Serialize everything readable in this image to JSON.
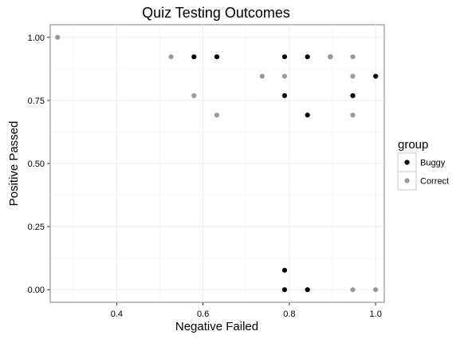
{
  "chart_data": {
    "type": "scatter",
    "title": "Quiz Testing Outcomes",
    "xlabel": "Negative Failed",
    "ylabel": "Positive Passed",
    "xlim": [
      0.246,
      1.02
    ],
    "ylim": [
      -0.05,
      1.05
    ],
    "x_ticks": [
      0.4,
      0.6,
      0.8,
      1.0
    ],
    "x_tick_labels": [
      "0.4",
      "0.6",
      "0.8",
      "1.0"
    ],
    "y_ticks": [
      0.0,
      0.25,
      0.5,
      0.75,
      1.0
    ],
    "y_tick_labels": [
      "0.00",
      "0.25",
      "0.50",
      "0.75",
      "1.00"
    ],
    "grid": true,
    "legend": {
      "title": "group",
      "placement": "right"
    },
    "series": [
      {
        "name": "Buggy",
        "color": "#000000",
        "points": [
          [
            0.579,
            0.923
          ],
          [
            0.632,
            0.923
          ],
          [
            0.789,
            0.923
          ],
          [
            0.842,
            0.923
          ],
          [
            0.895,
            0.923
          ],
          [
            1.0,
            0.846
          ],
          [
            0.789,
            0.769
          ],
          [
            0.947,
            0.769
          ],
          [
            0.842,
            0.692
          ],
          [
            0.789,
            0.077
          ],
          [
            0.789,
            0.0
          ],
          [
            0.842,
            0.0
          ]
        ]
      },
      {
        "name": "Correct",
        "color": "#999999",
        "points": [
          [
            0.263,
            1.0
          ],
          [
            0.526,
            0.923
          ],
          [
            0.895,
            0.923
          ],
          [
            0.947,
            0.923
          ],
          [
            0.737,
            0.846
          ],
          [
            0.789,
            0.846
          ],
          [
            0.947,
            0.846
          ],
          [
            0.579,
            0.769
          ],
          [
            0.632,
            0.692
          ],
          [
            0.947,
            0.692
          ],
          [
            0.947,
            0.0
          ],
          [
            1.0,
            0.0
          ]
        ]
      }
    ]
  }
}
